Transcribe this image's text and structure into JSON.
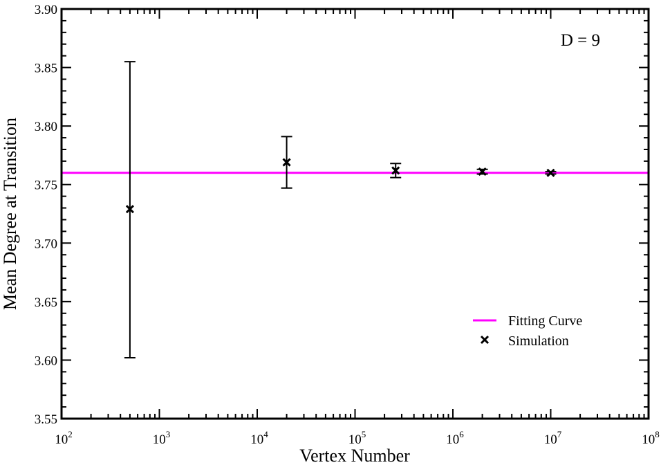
{
  "chart_data": {
    "type": "scatter",
    "title": "",
    "xlabel": "Vertex Number",
    "ylabel": "Mean Degree at Transition",
    "xscale": "log",
    "xlim": [
      100,
      100000000
    ],
    "ylim": [
      3.55,
      3.9
    ],
    "x_ticks": [
      {
        "base": "10",
        "exp": "2",
        "value": 100
      },
      {
        "base": "10",
        "exp": "3",
        "value": 1000
      },
      {
        "base": "10",
        "exp": "4",
        "value": 10000
      },
      {
        "base": "10",
        "exp": "5",
        "value": 100000
      },
      {
        "base": "10",
        "exp": "6",
        "value": 1000000
      },
      {
        "base": "10",
        "exp": "7",
        "value": 10000000
      },
      {
        "base": "10",
        "exp": "8",
        "value": 100000000
      }
    ],
    "y_ticks": [
      {
        "label": "3.55",
        "value": 3.55
      },
      {
        "label": "3.60",
        "value": 3.6
      },
      {
        "label": "3.65",
        "value": 3.65
      },
      {
        "label": "3.70",
        "value": 3.7
      },
      {
        "label": "3.75",
        "value": 3.75
      },
      {
        "label": "3.80",
        "value": 3.8
      },
      {
        "label": "3.85",
        "value": 3.85
      },
      {
        "label": "3.90",
        "value": 3.9
      }
    ],
    "annotation": "D = 9",
    "grid": false,
    "legend_position": "bottom-right",
    "series": [
      {
        "name": "Fitting Curve",
        "kind": "line",
        "color": "#ff00ff",
        "y": 3.76
      },
      {
        "name": "Simulation",
        "kind": "scatter",
        "marker": "x",
        "color": "#000000",
        "points": [
          {
            "x": 500,
            "y": 3.729,
            "err_low": 3.602,
            "err_high": 3.855
          },
          {
            "x": 20000,
            "y": 3.769,
            "err_low": 3.747,
            "err_high": 3.791
          },
          {
            "x": 260000,
            "y": 3.762,
            "err_low": 3.756,
            "err_high": 3.768
          },
          {
            "x": 2000000,
            "y": 3.761,
            "err_low": 3.759,
            "err_high": 3.763
          },
          {
            "x": 10000000,
            "y": 3.76,
            "err_low": 3.759,
            "err_high": 3.761
          }
        ]
      }
    ]
  }
}
